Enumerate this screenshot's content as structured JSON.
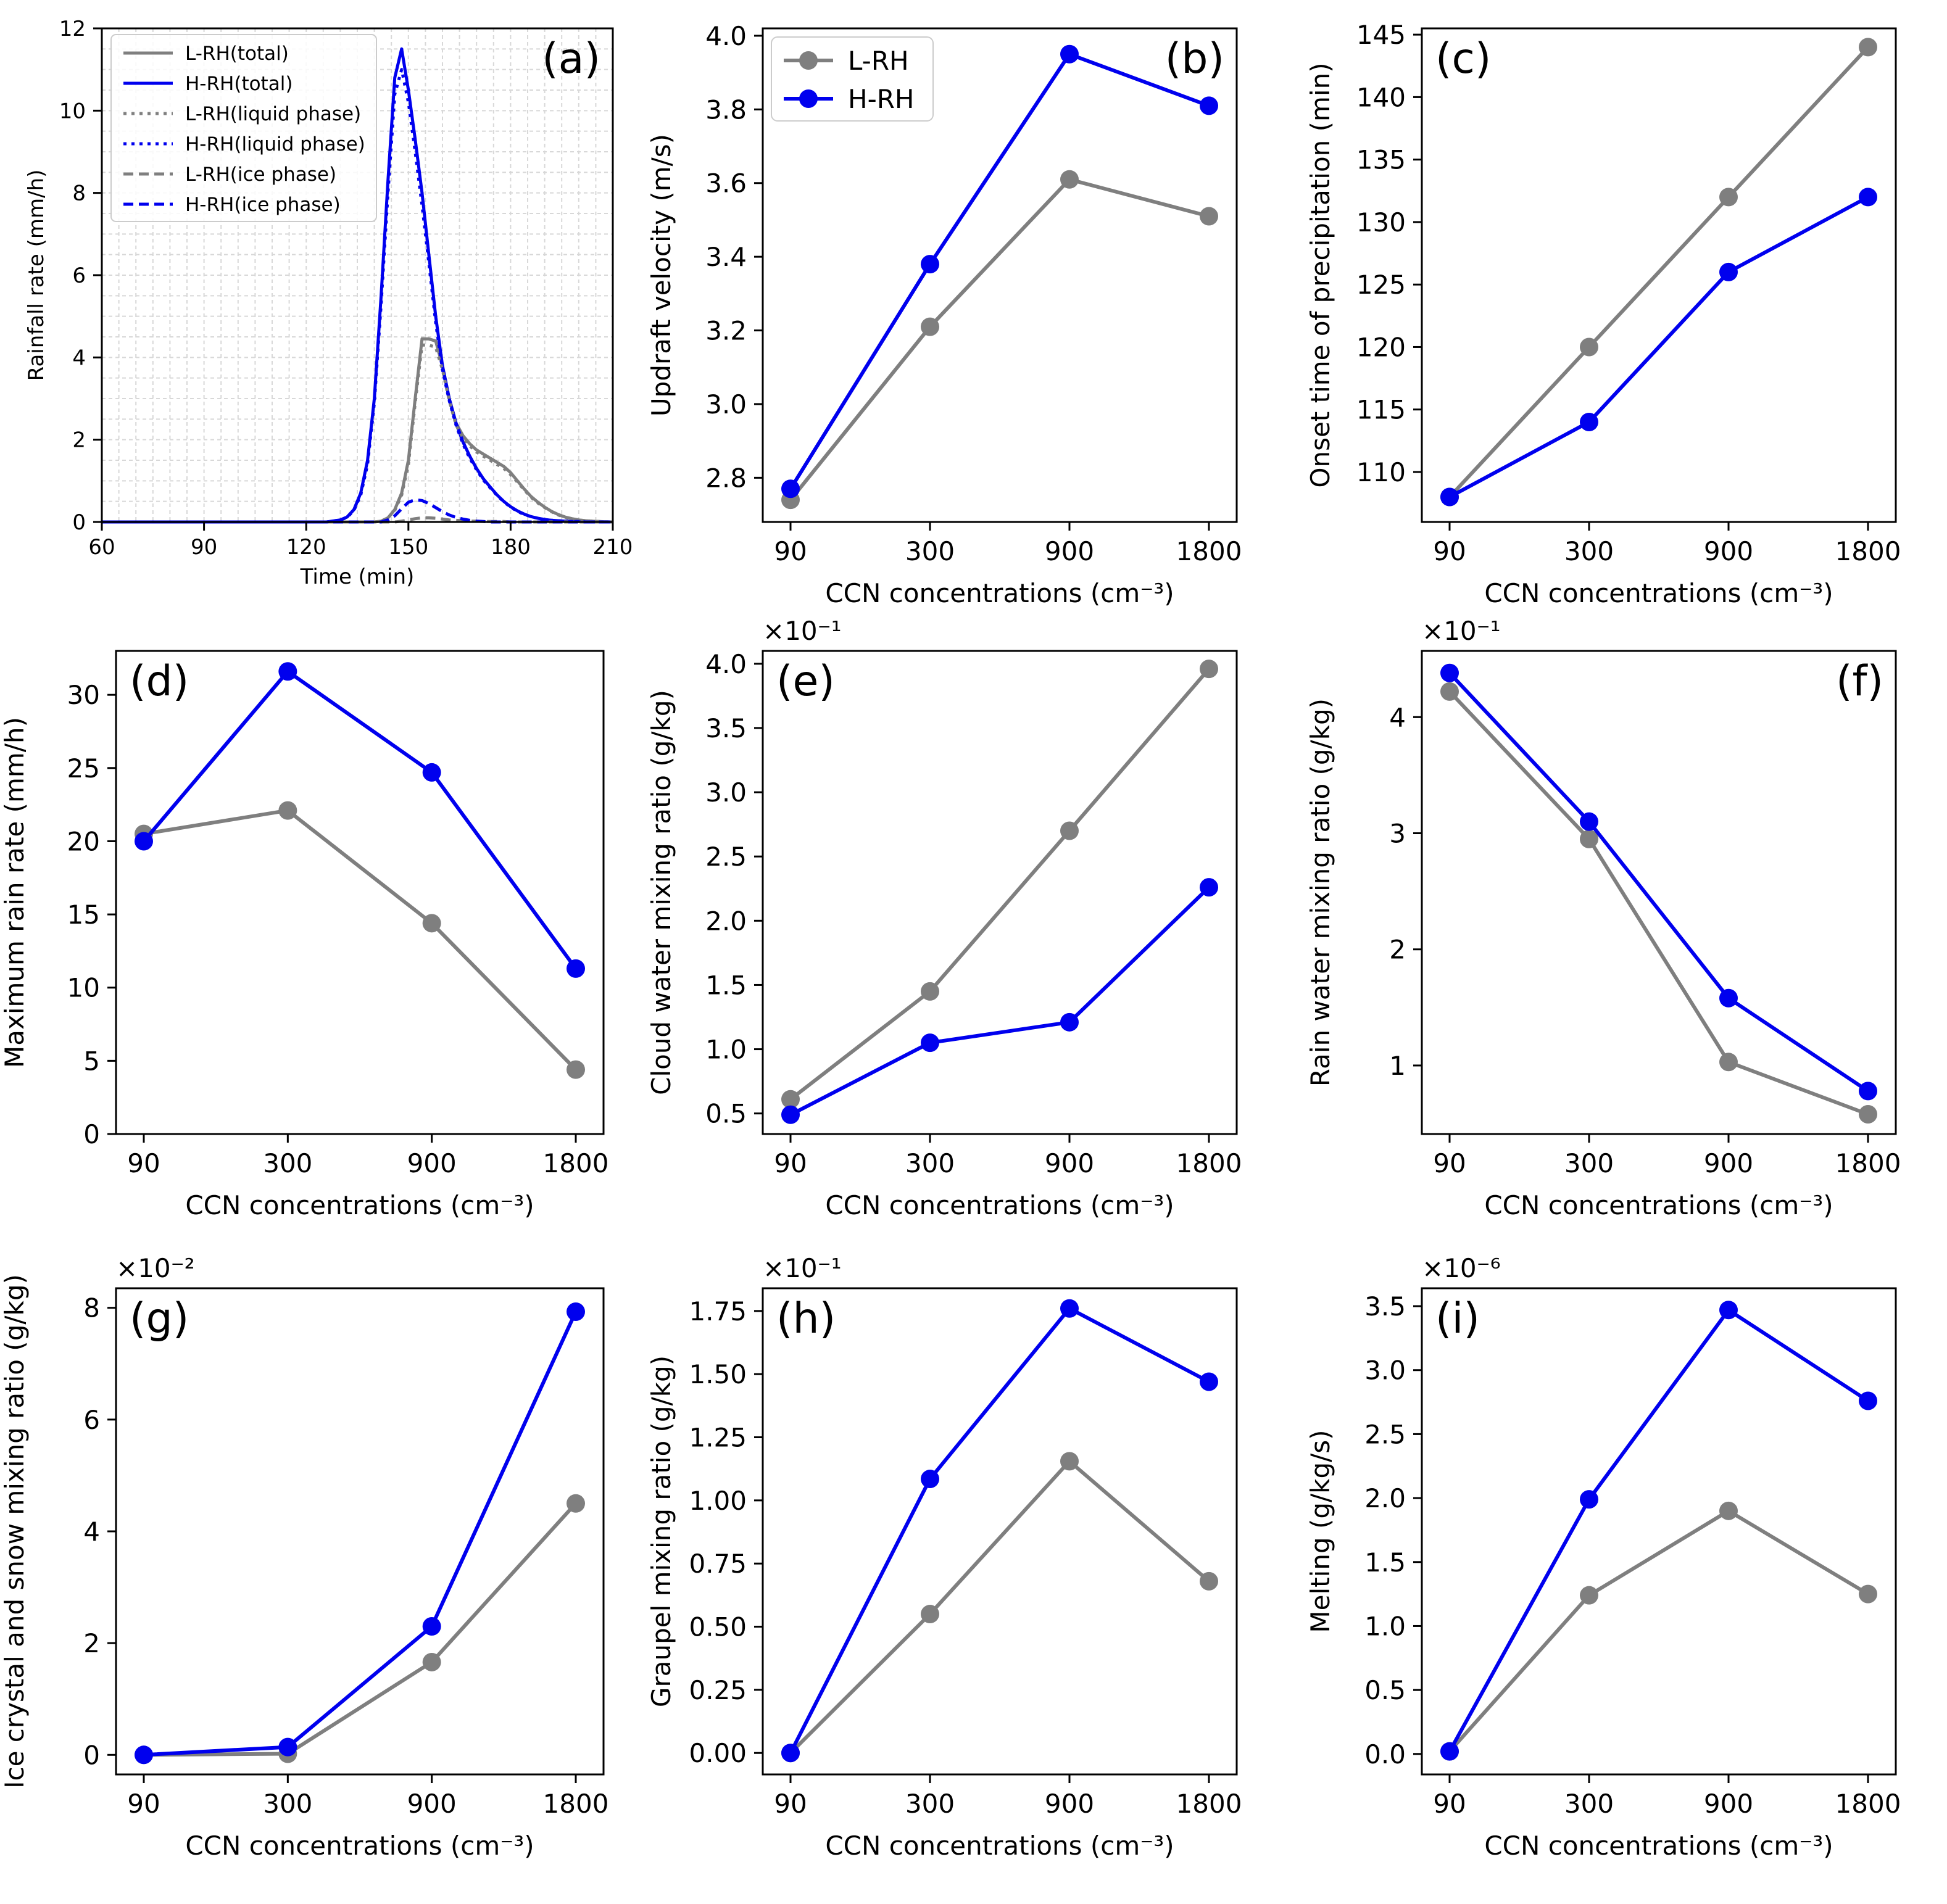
{
  "figure": {
    "title": ""
  },
  "colors": {
    "lrh": "#7f7f7f",
    "hrh": "#0000ee",
    "grid": "#d8d8d8"
  },
  "chart_data": [
    {
      "panel": "(a)",
      "type": "line",
      "xlabel": "Time (min)",
      "ylabel": "Rainfall rate (mm/h)",
      "xlim": [
        60,
        210
      ],
      "ylim": [
        0,
        12
      ],
      "xticks": [
        "60",
        "90",
        "120",
        "150",
        "180",
        "210"
      ],
      "yticks": [
        "0",
        "2",
        "4",
        "6",
        "8",
        "10",
        "12"
      ],
      "grid": true,
      "legend_position": "upper-left",
      "x": [
        60,
        126,
        130,
        132,
        134,
        136,
        138,
        140,
        142,
        144,
        146,
        148,
        150,
        152,
        154,
        156,
        158,
        160,
        162,
        164,
        166,
        168,
        170,
        172,
        174,
        176,
        178,
        180,
        182,
        184,
        186,
        188,
        190,
        192,
        194,
        196,
        198,
        200,
        202,
        204,
        206,
        208,
        210
      ],
      "series": [
        {
          "name": "L-RH(total)",
          "color": "lrh",
          "dash": "solid",
          "values": [
            0,
            0,
            0,
            0,
            0,
            0,
            0,
            0,
            0.02,
            0.1,
            0.3,
            0.7,
            1.5,
            3.0,
            4.45,
            4.45,
            4.4,
            3.8,
            3.0,
            2.4,
            2.1,
            1.9,
            1.75,
            1.65,
            1.55,
            1.45,
            1.35,
            1.2,
            1.0,
            0.8,
            0.62,
            0.48,
            0.36,
            0.26,
            0.18,
            0.12,
            0.08,
            0.05,
            0.03,
            0.02,
            0.01,
            0.005,
            0
          ]
        },
        {
          "name": "H-RH(total)",
          "color": "hrh",
          "dash": "solid",
          "values": [
            0,
            0,
            0.05,
            0.12,
            0.3,
            0.7,
            1.5,
            3.0,
            5.5,
            8.3,
            10.8,
            11.5,
            10.5,
            9.3,
            8.0,
            6.5,
            5.0,
            3.8,
            3.0,
            2.4,
            1.95,
            1.6,
            1.3,
            1.05,
            0.85,
            0.66,
            0.5,
            0.37,
            0.27,
            0.19,
            0.13,
            0.09,
            0.06,
            0.04,
            0.03,
            0.02,
            0.01,
            0.01,
            0,
            0,
            0,
            0,
            0
          ]
        },
        {
          "name": "L-RH(liquid phase)",
          "color": "lrh",
          "dash": "dotted",
          "values": [
            0,
            0,
            0,
            0,
            0,
            0,
            0,
            0,
            0.02,
            0.1,
            0.28,
            0.65,
            1.4,
            2.9,
            4.3,
            4.3,
            4.25,
            3.7,
            2.95,
            2.35,
            2.05,
            1.85,
            1.7,
            1.6,
            1.5,
            1.4,
            1.3,
            1.15,
            0.97,
            0.78,
            0.6,
            0.46,
            0.35,
            0.25,
            0.17,
            0.11,
            0.07,
            0.05,
            0.03,
            0.02,
            0.01,
            0.005,
            0
          ]
        },
        {
          "name": "H-RH(liquid phase)",
          "color": "hrh",
          "dash": "dotted",
          "values": [
            0,
            0,
            0.05,
            0.11,
            0.28,
            0.65,
            1.4,
            2.9,
            5.3,
            8.0,
            10.4,
            11.0,
            10.2,
            9.0,
            7.7,
            6.3,
            4.85,
            3.7,
            2.95,
            2.35,
            1.9,
            1.55,
            1.27,
            1.02,
            0.83,
            0.65,
            0.49,
            0.36,
            0.26,
            0.18,
            0.13,
            0.09,
            0.06,
            0.04,
            0.03,
            0.02,
            0.01,
            0.01,
            0,
            0,
            0,
            0,
            0
          ]
        },
        {
          "name": "L-RH(ice phase)",
          "color": "lrh",
          "dash": "dashed",
          "values": [
            0,
            0,
            0,
            0,
            0,
            0,
            0,
            0,
            0,
            0,
            0,
            0.02,
            0.05,
            0.08,
            0.1,
            0.1,
            0.09,
            0.07,
            0.05,
            0.04,
            0.03,
            0.02,
            0.02,
            0.01,
            0.01,
            0.01,
            0.01,
            0,
            0,
            0,
            0,
            0,
            0,
            0,
            0,
            0,
            0,
            0,
            0,
            0,
            0,
            0,
            0
          ]
        },
        {
          "name": "H-RH(ice phase)",
          "color": "hrh",
          "dash": "dashed",
          "values": [
            0,
            0,
            0,
            0,
            0,
            0,
            0,
            0,
            0,
            0.05,
            0.15,
            0.32,
            0.48,
            0.54,
            0.52,
            0.45,
            0.35,
            0.25,
            0.17,
            0.11,
            0.07,
            0.04,
            0.02,
            0.01,
            0,
            0,
            0,
            0,
            0,
            0,
            0,
            0,
            0,
            0,
            0,
            0,
            0,
            0,
            0,
            0,
            0,
            0,
            0
          ]
        }
      ]
    },
    {
      "panel": "(b)",
      "type": "line",
      "xlabel": "CCN concentrations (cm⁻³)",
      "ylabel": "Updraft velocity (m/s)",
      "categories": [
        "90",
        "300",
        "900",
        "1800"
      ],
      "ylim": [
        2.68,
        4.02
      ],
      "yticks": [
        2.8,
        3.0,
        3.2,
        3.4,
        3.6,
        3.8,
        4.0
      ],
      "ytick_labels": [
        "2.8",
        "3.0",
        "3.2",
        "3.4",
        "3.6",
        "3.8",
        "4.0"
      ],
      "multiplier": "",
      "legend_position": "upper-left",
      "label_position": "right",
      "series": [
        {
          "name": "L-RH",
          "color": "lrh",
          "values": [
            2.74,
            3.21,
            3.61,
            3.51
          ]
        },
        {
          "name": "H-RH",
          "color": "hrh",
          "values": [
            2.77,
            3.38,
            3.95,
            3.81
          ]
        }
      ]
    },
    {
      "panel": "(c)",
      "type": "line",
      "xlabel": "CCN concentrations (cm⁻³)",
      "ylabel": "Onset time of precipitation (min)",
      "categories": [
        "90",
        "300",
        "900",
        "1800"
      ],
      "ylim": [
        106,
        145.5
      ],
      "yticks": [
        110,
        115,
        120,
        125,
        130,
        135,
        140,
        145
      ],
      "ytick_labels": [
        "110",
        "115",
        "120",
        "125",
        "130",
        "135",
        "140",
        "145"
      ],
      "multiplier": "",
      "label_position": "left",
      "series": [
        {
          "name": "L-RH",
          "color": "lrh",
          "values": [
            108,
            120,
            132,
            144
          ]
        },
        {
          "name": "H-RH",
          "color": "hrh",
          "values": [
            108,
            114,
            126,
            132
          ]
        }
      ]
    },
    {
      "panel": "(d)",
      "type": "line",
      "xlabel": "CCN concentrations (cm⁻³)",
      "ylabel": "Maximum rain rate (mm/h)",
      "categories": [
        "90",
        "300",
        "900",
        "1800"
      ],
      "ylim": [
        0,
        33
      ],
      "yticks": [
        0,
        5,
        10,
        15,
        20,
        25,
        30
      ],
      "ytick_labels": [
        "0",
        "5",
        "10",
        "15",
        "20",
        "25",
        "30"
      ],
      "multiplier": "",
      "label_position": "left",
      "series": [
        {
          "name": "L-RH",
          "color": "lrh",
          "values": [
            20.5,
            22.1,
            14.4,
            4.4
          ]
        },
        {
          "name": "H-RH",
          "color": "hrh",
          "values": [
            20.0,
            31.6,
            24.7,
            11.3
          ]
        }
      ]
    },
    {
      "panel": "(e)",
      "type": "line",
      "xlabel": "CCN concentrations (cm⁻³)",
      "ylabel": "Cloud water mixing ratio (g/kg)",
      "categories": [
        "90",
        "300",
        "900",
        "1800"
      ],
      "ylim": [
        0.034,
        0.41
      ],
      "yticks": [
        0.05,
        0.1,
        0.15,
        0.2,
        0.25,
        0.3,
        0.35,
        0.4
      ],
      "ytick_labels": [
        "0.5",
        "1.0",
        "1.5",
        "2.0",
        "2.5",
        "3.0",
        "3.5",
        "4.0"
      ],
      "multiplier": "×10⁻¹",
      "label_position": "left",
      "series": [
        {
          "name": "L-RH",
          "color": "lrh",
          "values": [
            0.061,
            0.145,
            0.27,
            0.396
          ]
        },
        {
          "name": "H-RH",
          "color": "hrh",
          "values": [
            0.049,
            0.105,
            0.121,
            0.226
          ]
        }
      ]
    },
    {
      "panel": "(f)",
      "type": "line",
      "xlabel": "CCN concentrations (cm⁻³)",
      "ylabel": "Rain water mixing ratio (g/kg)",
      "categories": [
        "90",
        "300",
        "900",
        "1800"
      ],
      "ylim": [
        0.041,
        0.457
      ],
      "yticks": [
        0.1,
        0.2,
        0.3,
        0.4
      ],
      "ytick_labels": [
        "1",
        "2",
        "3",
        "4"
      ],
      "multiplier": "×10⁻¹",
      "label_position": "right",
      "series": [
        {
          "name": "L-RH",
          "color": "lrh",
          "values": [
            0.422,
            0.295,
            0.103,
            0.058
          ]
        },
        {
          "name": "H-RH",
          "color": "hrh",
          "values": [
            0.438,
            0.31,
            0.158,
            0.078
          ]
        }
      ]
    },
    {
      "panel": "(g)",
      "type": "line",
      "xlabel": "CCN concentrations (cm⁻³)",
      "ylabel": "Ice crystal and snow mixing ratio (g/kg)",
      "categories": [
        "90",
        "300",
        "900",
        "1800"
      ],
      "ylim": [
        -0.0035,
        0.0835
      ],
      "yticks": [
        0,
        0.02,
        0.04,
        0.06,
        0.08
      ],
      "ytick_labels": [
        "0",
        "2",
        "4",
        "6",
        "8"
      ],
      "multiplier": "×10⁻²",
      "label_position": "left",
      "series": [
        {
          "name": "L-RH",
          "color": "lrh",
          "values": [
            0.0,
            0.0002,
            0.0166,
            0.045
          ]
        },
        {
          "name": "H-RH",
          "color": "hrh",
          "values": [
            0.0,
            0.0014,
            0.023,
            0.0793
          ]
        }
      ]
    },
    {
      "panel": "(h)",
      "type": "line",
      "xlabel": "CCN concentrations (cm⁻³)",
      "ylabel": "Graupel mixing ratio (g/kg)",
      "categories": [
        "90",
        "300",
        "900",
        "1800"
      ],
      "ylim": [
        -0.0085,
        0.184
      ],
      "yticks": [
        0,
        0.025,
        0.05,
        0.075,
        0.1,
        0.125,
        0.15,
        0.175
      ],
      "ytick_labels": [
        "0.00",
        "0.25",
        "0.50",
        "0.75",
        "1.00",
        "1.25",
        "1.50",
        "1.75"
      ],
      "multiplier": "×10⁻¹",
      "label_position": "left",
      "series": [
        {
          "name": "L-RH",
          "color": "lrh",
          "values": [
            0.0,
            0.055,
            0.1155,
            0.068
          ]
        },
        {
          "name": "H-RH",
          "color": "hrh",
          "values": [
            0.0,
            0.1085,
            0.176,
            0.147
          ]
        }
      ]
    },
    {
      "panel": "(i)",
      "type": "line",
      "xlabel": "CCN concentrations (cm⁻³)",
      "ylabel": "Melting (g/kg/s)",
      "categories": [
        "90",
        "300",
        "900",
        "1800"
      ],
      "ylim": [
        -1.6e-07,
        3.64e-06
      ],
      "yticks": [
        0,
        5e-07,
        1e-06,
        1.5e-06,
        2e-06,
        2.5e-06,
        3e-06,
        3.5e-06
      ],
      "ytick_labels": [
        "0.0",
        "0.5",
        "1.0",
        "1.5",
        "2.0",
        "2.5",
        "3.0",
        "3.5"
      ],
      "multiplier": "×10⁻⁶",
      "label_position": "left",
      "series": [
        {
          "name": "L-RH",
          "color": "lrh",
          "values": [
            2e-08,
            1.24e-06,
            1.9e-06,
            1.25e-06
          ]
        },
        {
          "name": "H-RH",
          "color": "hrh",
          "values": [
            2e-08,
            1.99e-06,
            3.47e-06,
            2.76e-06
          ]
        }
      ]
    }
  ]
}
